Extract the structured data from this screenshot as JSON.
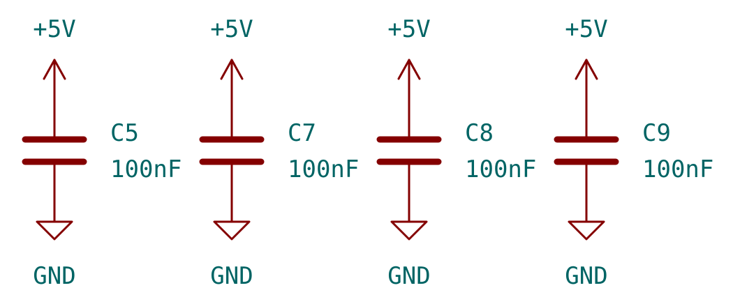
{
  "colors": {
    "wire": "#840000",
    "text": "#006464",
    "background": "#ffffff"
  },
  "capacitors": [
    {
      "ref": "C5",
      "value": "100nF",
      "power_label": "+5V",
      "ground_label": "GND"
    },
    {
      "ref": "C7",
      "value": "100nF",
      "power_label": "+5V",
      "ground_label": "GND"
    },
    {
      "ref": "C8",
      "value": "100nF",
      "power_label": "+5V",
      "ground_label": "GND"
    },
    {
      "ref": "C9",
      "value": "100nF",
      "power_label": "+5V",
      "ground_label": "GND"
    }
  ]
}
